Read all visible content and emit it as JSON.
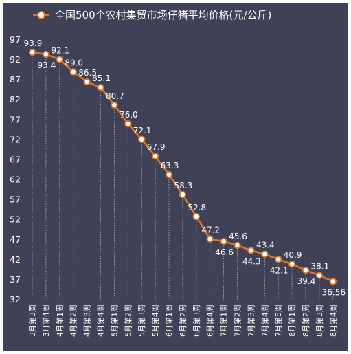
{
  "chart_data": {
    "type": "line",
    "title": "",
    "legend": {
      "position": "top-center",
      "entries": [
        "全国500个农村集贸市场仔猪平均价格(元/公斤)"
      ]
    },
    "series": [
      {
        "name": "全国500个农村集贸市场仔猪平均价格(元/公斤)",
        "color": "#d9762d",
        "values": [
          93.9,
          93.4,
          92.1,
          89.0,
          86.5,
          85.1,
          80.7,
          76.0,
          72.1,
          67.9,
          63.3,
          58.3,
          52.8,
          47.2,
          46.6,
          45.6,
          44.3,
          43.4,
          42.1,
          40.9,
          39.4,
          38.1,
          36.56
        ],
        "labels": [
          "93.9",
          "93.4",
          "92.1",
          "89.0",
          "86.5",
          "85.1",
          "80.7",
          "76.0",
          "72.1",
          "67.9",
          "63.3",
          "58.3",
          "52.8",
          "47.2",
          "46.6",
          "45.6",
          "44.3",
          "43.4",
          "42.1",
          "40.9",
          "39.4",
          "38.1",
          "36.56"
        ],
        "label_positions": [
          "above",
          "below",
          "above",
          "above",
          "above",
          "above",
          "above",
          "above",
          "above",
          "above",
          "above",
          "above",
          "above",
          "above",
          "below",
          "above",
          "below",
          "above",
          "below",
          "above",
          "below",
          "above",
          "below"
        ]
      }
    ],
    "categories": [
      "3月第3周",
      "3月第4周",
      "4月第1周",
      "4月第2周",
      "4月第3周",
      "4月第4周",
      "5月第1周",
      "5月第2周",
      "5月第3周",
      "5月第4周",
      "6月第1周",
      "6月第2周",
      "6月第3周",
      "6月第4周",
      "7月第1周",
      "7月第2周",
      "7月第3周",
      "7月第4周",
      "7月第5周",
      "8月第1周",
      "8月第2周",
      "8月第3周",
      "8月第4周"
    ],
    "ylim": [
      32,
      97
    ],
    "yticks": [
      "97",
      "92",
      "87",
      "82",
      "77",
      "72",
      "67",
      "62",
      "57",
      "52",
      "47",
      "42",
      "37",
      "32"
    ],
    "xlabel": "",
    "ylabel": "",
    "grid": "vertical-dotted-drop-lines",
    "background": "#3f4157",
    "marker_fill": "#ffffff"
  }
}
